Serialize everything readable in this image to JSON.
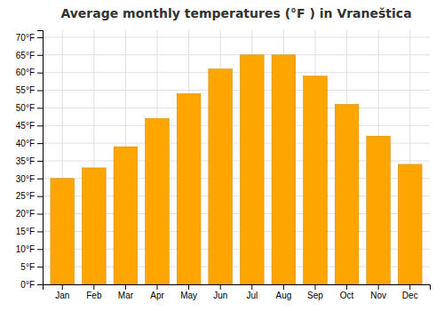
{
  "chart_data": {
    "type": "bar",
    "title": "Average monthly temperatures (°F ) in Vraneštica",
    "categories": [
      "Jan",
      "Feb",
      "Mar",
      "Apr",
      "May",
      "Jun",
      "Jul",
      "Aug",
      "Sep",
      "Oct",
      "Nov",
      "Dec"
    ],
    "values": [
      30,
      33,
      39,
      47,
      54,
      61,
      65,
      65,
      59,
      51,
      42,
      34
    ],
    "color": "#FFA500",
    "ylim": [
      0,
      72
    ],
    "yticks": [
      {
        "value": 0,
        "label": "0°F"
      },
      {
        "value": 5,
        "label": "5°F"
      },
      {
        "value": 10,
        "label": "10°F"
      },
      {
        "value": 15,
        "label": "15°F"
      },
      {
        "value": 20,
        "label": "20°F"
      },
      {
        "value": 25,
        "label": "25°F"
      },
      {
        "value": 30,
        "label": "30°F"
      },
      {
        "value": 35,
        "label": "35°F"
      },
      {
        "value": 40,
        "label": "40°F"
      },
      {
        "value": 45,
        "label": "45°F"
      },
      {
        "value": 50,
        "label": "50°F"
      },
      {
        "value": 55,
        "label": "55°F"
      },
      {
        "value": 60,
        "label": "60°F"
      },
      {
        "value": 65,
        "label": "65°F"
      },
      {
        "value": 70,
        "label": "70°F"
      }
    ],
    "grid": true
  }
}
